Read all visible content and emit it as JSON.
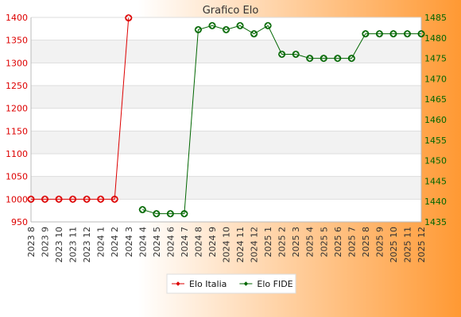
{
  "chart_data": {
    "type": "line",
    "title": "Grafico Elo",
    "categories": [
      "2023 8",
      "2023 9",
      "2023 10",
      "2023 11",
      "2023 12",
      "2024 1",
      "2024 2",
      "2024 3",
      "2024 4",
      "2024 5",
      "2024 6",
      "2024 7",
      "2024 8",
      "2024 9",
      "2024 10",
      "2024 11",
      "2024 12",
      "2025 1",
      "2025 2",
      "2025 3",
      "2025 4",
      "2025 5",
      "2025 6",
      "2025 7",
      "2025 8",
      "2025 9",
      "2025 10",
      "2025 11",
      "2025 12"
    ],
    "y_left": {
      "min": 950,
      "max": 1400,
      "ticks": [
        950,
        1000,
        1050,
        1100,
        1150,
        1200,
        1250,
        1300,
        1350,
        1400
      ]
    },
    "y_right": {
      "min": 1435,
      "max": 1485,
      "ticks": [
        1435,
        1440,
        1445,
        1450,
        1455,
        1460,
        1465,
        1470,
        1475,
        1480,
        1485
      ]
    },
    "series": [
      {
        "name": "Elo Italia",
        "axis": "left",
        "color": "#dd0000",
        "values": [
          1000,
          1000,
          1000,
          1000,
          1000,
          1000,
          1000,
          1399,
          null,
          null,
          null,
          null,
          null,
          null,
          null,
          null,
          null,
          null,
          null,
          null,
          null,
          null,
          null,
          null,
          null,
          null,
          null,
          null,
          null
        ]
      },
      {
        "name": "Elo FIDE",
        "axis": "right",
        "color": "#006600",
        "values": [
          null,
          null,
          null,
          null,
          null,
          null,
          null,
          null,
          1438,
          1437,
          1437,
          1437,
          1482,
          1483,
          1482,
          1483,
          1481,
          1483,
          1476,
          1476,
          1475,
          1475,
          1475,
          1475,
          1481,
          1481,
          1481,
          1481,
          1481
        ]
      }
    ],
    "grid": true,
    "legend_position": "bottom"
  }
}
